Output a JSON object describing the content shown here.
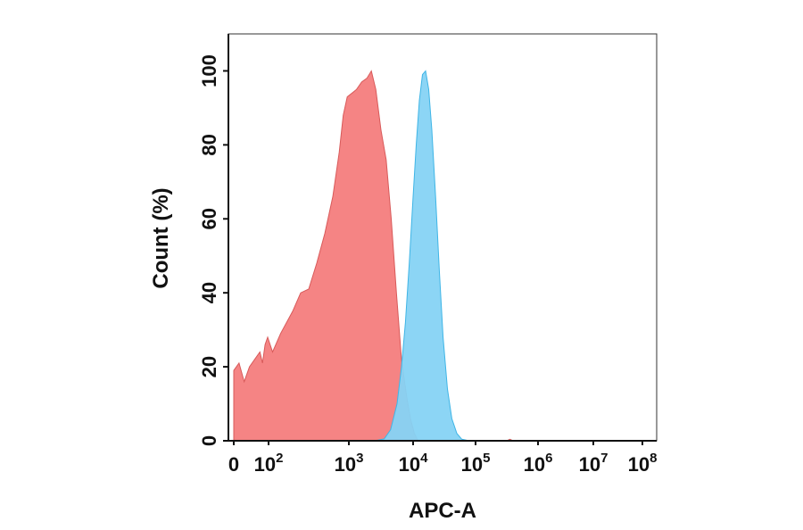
{
  "chart_data": {
    "type": "area",
    "title": "",
    "xlabel": "APC-A",
    "ylabel": "Count (%)",
    "x_scale": "log",
    "x_ticks": [
      {
        "label": "0",
        "value": 0
      },
      {
        "label": "10",
        "sup": "2",
        "value": 100
      },
      {
        "label": "10",
        "sup": "3",
        "value": 1000
      },
      {
        "label": "10",
        "sup": "4",
        "value": 10000
      },
      {
        "label": "10",
        "sup": "5",
        "value": 100000
      },
      {
        "label": "10",
        "sup": "6",
        "value": 1000000
      },
      {
        "label": "10",
        "sup": "7",
        "value": 10000000
      },
      {
        "label": "10",
        "sup": "8",
        "value": 100000000
      }
    ],
    "y_ticks": [
      "0",
      "20",
      "40",
      "60",
      "80",
      "100"
    ],
    "ylim": [
      0,
      110
    ],
    "grid": false,
    "colors": {
      "series_red": "#f47d7d",
      "series_red_edge": "#d85a5a",
      "series_blue": "#86d3f4",
      "series_blue_edge": "#3fb5e6"
    },
    "series": [
      {
        "color": "#f47d7d",
        "points": [
          [
            0,
            19
          ],
          [
            0.3,
            21
          ],
          [
            0.6,
            16
          ],
          [
            0.9,
            20
          ],
          [
            1.2,
            22
          ],
          [
            1.5,
            24
          ],
          [
            1.65,
            21
          ],
          [
            1.8,
            26
          ],
          [
            1.95,
            28
          ],
          [
            2.05,
            24
          ],
          [
            2.15,
            29
          ],
          [
            2.3,
            35
          ],
          [
            2.4,
            40
          ],
          [
            2.5,
            41
          ],
          [
            2.6,
            48
          ],
          [
            2.7,
            56
          ],
          [
            2.8,
            66
          ],
          [
            2.88,
            78
          ],
          [
            2.93,
            88
          ],
          [
            2.98,
            93
          ],
          [
            3.05,
            94
          ],
          [
            3.12,
            95
          ],
          [
            3.2,
            97
          ],
          [
            3.28,
            98
          ],
          [
            3.35,
            100
          ],
          [
            3.42,
            95
          ],
          [
            3.5,
            84
          ],
          [
            3.58,
            76
          ],
          [
            3.66,
            60
          ],
          [
            3.74,
            40
          ],
          [
            3.82,
            22
          ],
          [
            3.9,
            12
          ],
          [
            3.96,
            6
          ],
          [
            4.02,
            2
          ],
          [
            4.08,
            0
          ],
          [
            5.5,
            0
          ],
          [
            5.55,
            0.4
          ],
          [
            5.6,
            0
          ]
        ]
      },
      {
        "color": "#86d3f4",
        "points": [
          [
            3.4,
            0
          ],
          [
            3.55,
            0.5
          ],
          [
            3.65,
            3
          ],
          [
            3.75,
            10
          ],
          [
            3.82,
            20
          ],
          [
            3.88,
            32
          ],
          [
            3.94,
            48
          ],
          [
            4.0,
            66
          ],
          [
            4.05,
            80
          ],
          [
            4.1,
            92
          ],
          [
            4.15,
            99
          ],
          [
            4.2,
            100
          ],
          [
            4.25,
            95
          ],
          [
            4.3,
            84
          ],
          [
            4.36,
            66
          ],
          [
            4.42,
            46
          ],
          [
            4.48,
            28
          ],
          [
            4.55,
            14
          ],
          [
            4.62,
            6
          ],
          [
            4.7,
            2
          ],
          [
            4.78,
            0.4
          ],
          [
            4.9,
            0
          ]
        ]
      }
    ]
  }
}
